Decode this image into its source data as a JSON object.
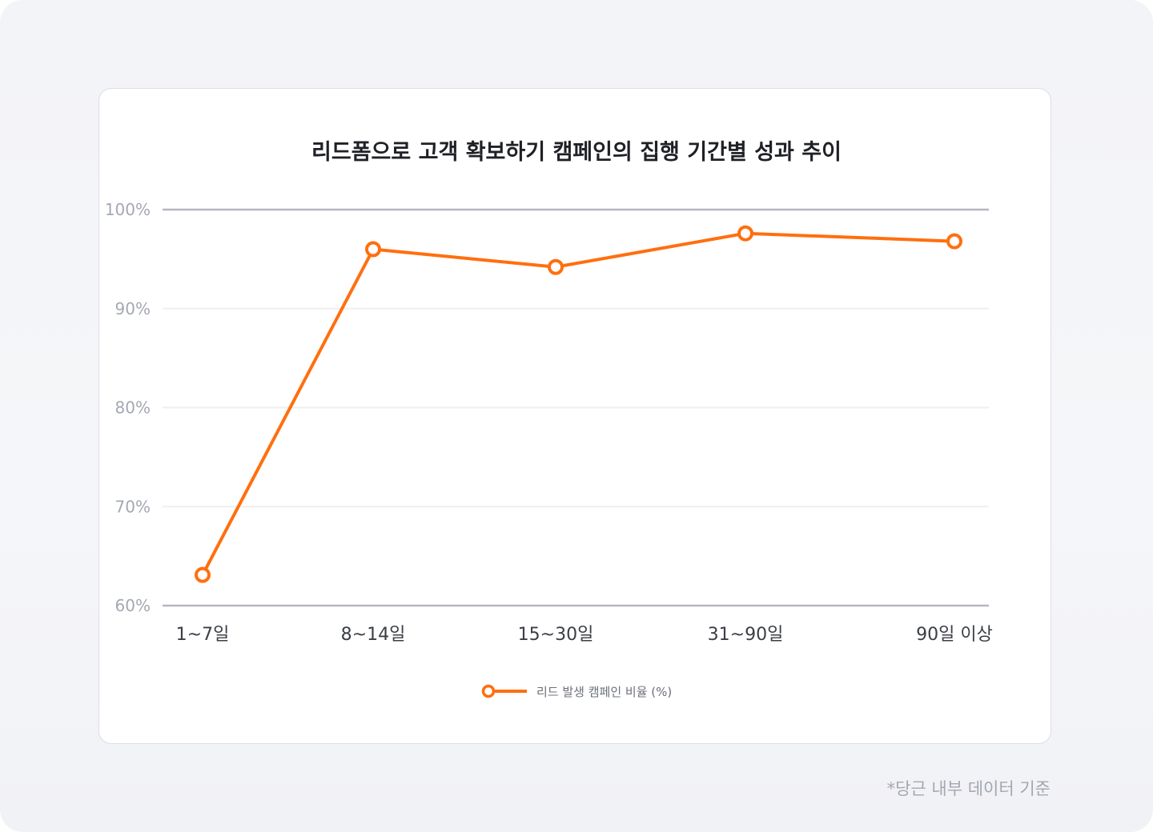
{
  "chart_data": {
    "type": "line",
    "title": "리드폼으로 고객 확보하기 캠페인의 집행 기간별 성과 추이",
    "categories": [
      "1~7일",
      "8~14일",
      "15~30일",
      "31~90일",
      "90일 이상"
    ],
    "series": [
      {
        "name": "리드 발생 캠페인 비율 (%)",
        "values": [
          63.1,
          96.0,
          94.2,
          97.6,
          96.8
        ],
        "color": "#ff6f0f"
      }
    ],
    "yticks": [
      "60%",
      "70%",
      "80%",
      "90%",
      "100%"
    ],
    "ylim": [
      60,
      100
    ],
    "grid": true,
    "legend": "bottom-center",
    "xlabel": "",
    "ylabel": ""
  },
  "footnote": "*당근 내부 데이터 기준",
  "colors": {
    "accent": "#ff6f0f",
    "axis": "#b4b7bf",
    "grid": "#efeff2"
  }
}
